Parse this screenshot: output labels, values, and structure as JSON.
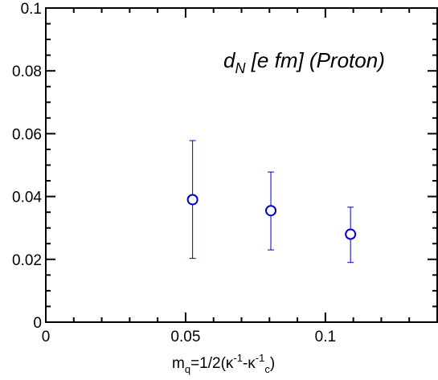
{
  "chart_data": {
    "type": "scatter",
    "title": {
      "main": "d",
      "sub": "N",
      "rest": " [e fm] (Proton)"
    },
    "xlabel": {
      "p1": "m",
      "s1": "q",
      "p2": "=1/2(κ",
      "s2": "-1",
      "p3": "-κ",
      "s3": "-1",
      "s4": "c",
      "p4": ")"
    },
    "ylabel": "",
    "xlim": [
      0,
      0.14
    ],
    "ylim": [
      0,
      0.1
    ],
    "xticks": [
      0,
      0.05,
      0.1
    ],
    "xtick_labels": [
      "0",
      "0.05",
      "0.1"
    ],
    "xminor_step": 0.01,
    "yticks": [
      0,
      0.02,
      0.04,
      0.06,
      0.08,
      0.1
    ],
    "ytick_labels": [
      "0",
      "0.02",
      "0.04",
      "0.06",
      "0.08",
      "0.1"
    ],
    "yminor_step": 0.005,
    "grid": false,
    "color": "#0000cc",
    "marker": "open-circle",
    "series": [
      {
        "x": [
          0.0525,
          0.0805,
          0.109
        ],
        "y": [
          0.039,
          0.0355,
          0.028
        ],
        "yerr_low": [
          0.0203,
          0.023,
          0.019
        ],
        "yerr_high": [
          0.0578,
          0.0478,
          0.0366
        ]
      }
    ]
  }
}
